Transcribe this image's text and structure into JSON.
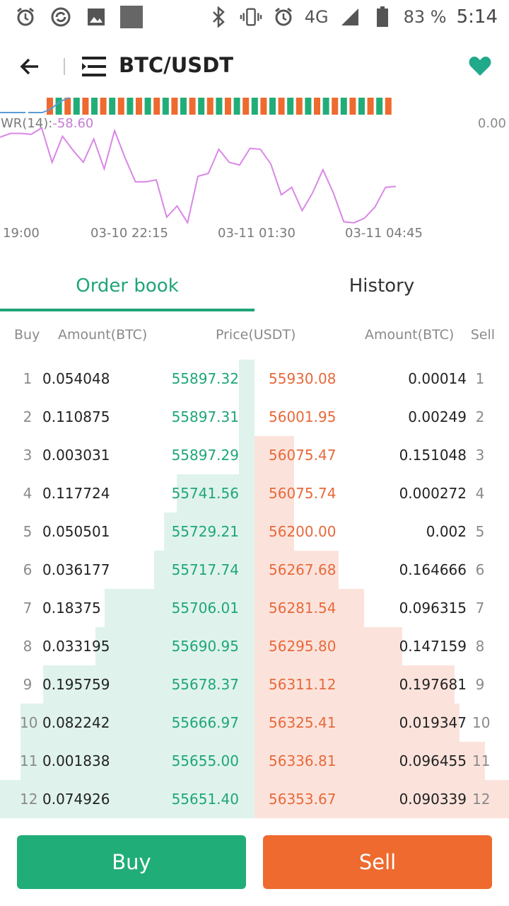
{
  "status_bar": {
    "battery": "83 %",
    "time": "5:14",
    "network": "4G",
    "left_icons": [
      "alarm-icon",
      "sync-icon",
      "image-icon",
      "square-icon"
    ],
    "right_icons": [
      "bluetooth-icon",
      "vibrate-icon",
      "alarm-icon",
      "signal-icon",
      "battery-icon"
    ]
  },
  "header": {
    "pair": "BTC/USDT",
    "accent": "#20a98b"
  },
  "indicator": {
    "label": "WR(14):",
    "value": "-58.60",
    "right_label": "0.00"
  },
  "chart_data": {
    "type": "line",
    "series": [
      {
        "name": "WR(14)",
        "color": "#d987e6",
        "values": [
          -12,
          -8,
          -8,
          -9,
          -2,
          -39,
          -11,
          -26,
          -39,
          -14,
          -46,
          -5,
          -34,
          -60,
          -60,
          -58,
          -98,
          -86,
          -104,
          -54,
          -51,
          -25,
          -39,
          -42,
          -24,
          -25,
          -41,
          -74,
          -66,
          -91,
          -72,
          -47,
          -72,
          -103,
          -104,
          -99,
          -87,
          -66,
          -65
        ]
      }
    ],
    "x_ticks": [
      "19:00",
      "03-10 22:15",
      "03-11 01:30",
      "03-11 04:45"
    ],
    "volume_bar_colors": [
      "#ee6a2f",
      "#21ad78"
    ]
  },
  "tabs": [
    {
      "label": "Order book",
      "active": true
    },
    {
      "label": "History",
      "active": false
    }
  ],
  "columns": {
    "buy": "Buy",
    "amount_left": "Amount(BTC)",
    "price": "Price(USDT)",
    "amount_right": "Amount(BTC)",
    "sell": "Sell"
  },
  "order_book": [
    {
      "i": "1",
      "buy_amount": "0.054048",
      "buy_price": "55897.32",
      "sell_price": "55930.08",
      "sell_amount": "0.00014",
      "buy_depth": 0.06,
      "sell_depth": 0.0
    },
    {
      "i": "2",
      "buy_amount": "0.110875",
      "buy_price": "55897.31",
      "sell_price": "56001.95",
      "sell_amount": "0.00249",
      "buy_depth": 0.06,
      "sell_depth": 0.0
    },
    {
      "i": "3",
      "buy_amount": "0.003031",
      "buy_price": "55897.29",
      "sell_price": "56075.47",
      "sell_amount": "0.151048",
      "buy_depth": 0.06,
      "sell_depth": 0.155
    },
    {
      "i": "4",
      "buy_amount": "0.117724",
      "buy_price": "55741.56",
      "sell_price": "56075.74",
      "sell_amount": "0.000272",
      "buy_depth": 0.305,
      "sell_depth": 0.155
    },
    {
      "i": "5",
      "buy_amount": "0.050501",
      "buy_price": "55729.21",
      "sell_price": "56200.00",
      "sell_amount": "0.002",
      "buy_depth": 0.355,
      "sell_depth": 0.155
    },
    {
      "i": "6",
      "buy_amount": "0.036177",
      "buy_price": "55717.74",
      "sell_price": "56267.68",
      "sell_amount": "0.164666",
      "buy_depth": 0.395,
      "sell_depth": 0.33
    },
    {
      "i": "7",
      "buy_amount": "0.18375",
      "buy_price": "55706.01",
      "sell_price": "56281.54",
      "sell_amount": "0.096315",
      "buy_depth": 0.59,
      "sell_depth": 0.43
    },
    {
      "i": "8",
      "buy_amount": "0.033195",
      "buy_price": "55690.95",
      "sell_price": "56295.80",
      "sell_amount": "0.147159",
      "buy_depth": 0.625,
      "sell_depth": 0.58
    },
    {
      "i": "9",
      "buy_amount": "0.195759",
      "buy_price": "55678.37",
      "sell_price": "56311.12",
      "sell_amount": "0.197681",
      "buy_depth": 0.83,
      "sell_depth": 0.785
    },
    {
      "i": "10",
      "buy_amount": "0.082242",
      "buy_price": "55666.97",
      "sell_price": "56325.41",
      "sell_amount": "0.019347",
      "buy_depth": 0.92,
      "sell_depth": 0.805
    },
    {
      "i": "11",
      "buy_amount": "0.001838",
      "buy_price": "55655.00",
      "sell_price": "56336.81",
      "sell_amount": "0.096455",
      "buy_depth": 0.92,
      "sell_depth": 0.905
    },
    {
      "i": "12",
      "buy_amount": "0.074926",
      "buy_price": "55651.40",
      "sell_price": "56353.67",
      "sell_amount": "0.090339",
      "buy_depth": 1.0,
      "sell_depth": 1.0
    }
  ],
  "actions": {
    "buy": "Buy",
    "sell": "Sell",
    "buy_color": "#21ad78",
    "sell_color": "#ee6a2f"
  }
}
